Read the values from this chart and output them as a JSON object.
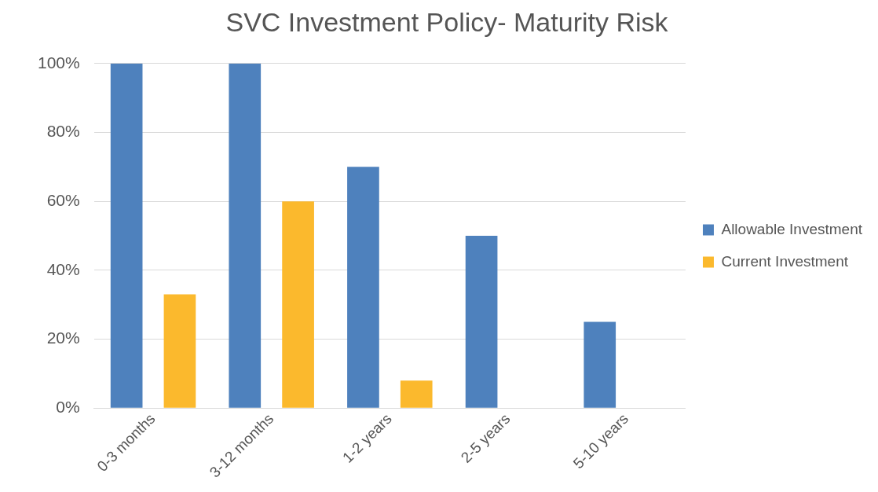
{
  "chart_data": {
    "type": "bar",
    "title": "SVC Investment Policy- Maturity Risk",
    "categories": [
      "0-3 months",
      "3-12 months",
      "1-2 years",
      "2-5 years",
      "5-10 years"
    ],
    "series": [
      {
        "name": "Allowable Investment",
        "color": "#4e81bd",
        "values": [
          100,
          100,
          70,
          50,
          25
        ]
      },
      {
        "name": "Current Investment",
        "color": "#fbb92d",
        "values": [
          33,
          60,
          8,
          null,
          null
        ]
      }
    ],
    "ylim": [
      0,
      100
    ],
    "yticks": [
      {
        "value": 0,
        "label": "0%"
      },
      {
        "value": 20,
        "label": "20%"
      },
      {
        "value": 40,
        "label": "40%"
      },
      {
        "value": 60,
        "label": "60%"
      },
      {
        "value": 80,
        "label": "80%"
      },
      {
        "value": 100,
        "label": "100%"
      }
    ],
    "grid": "y",
    "legend": "right"
  }
}
